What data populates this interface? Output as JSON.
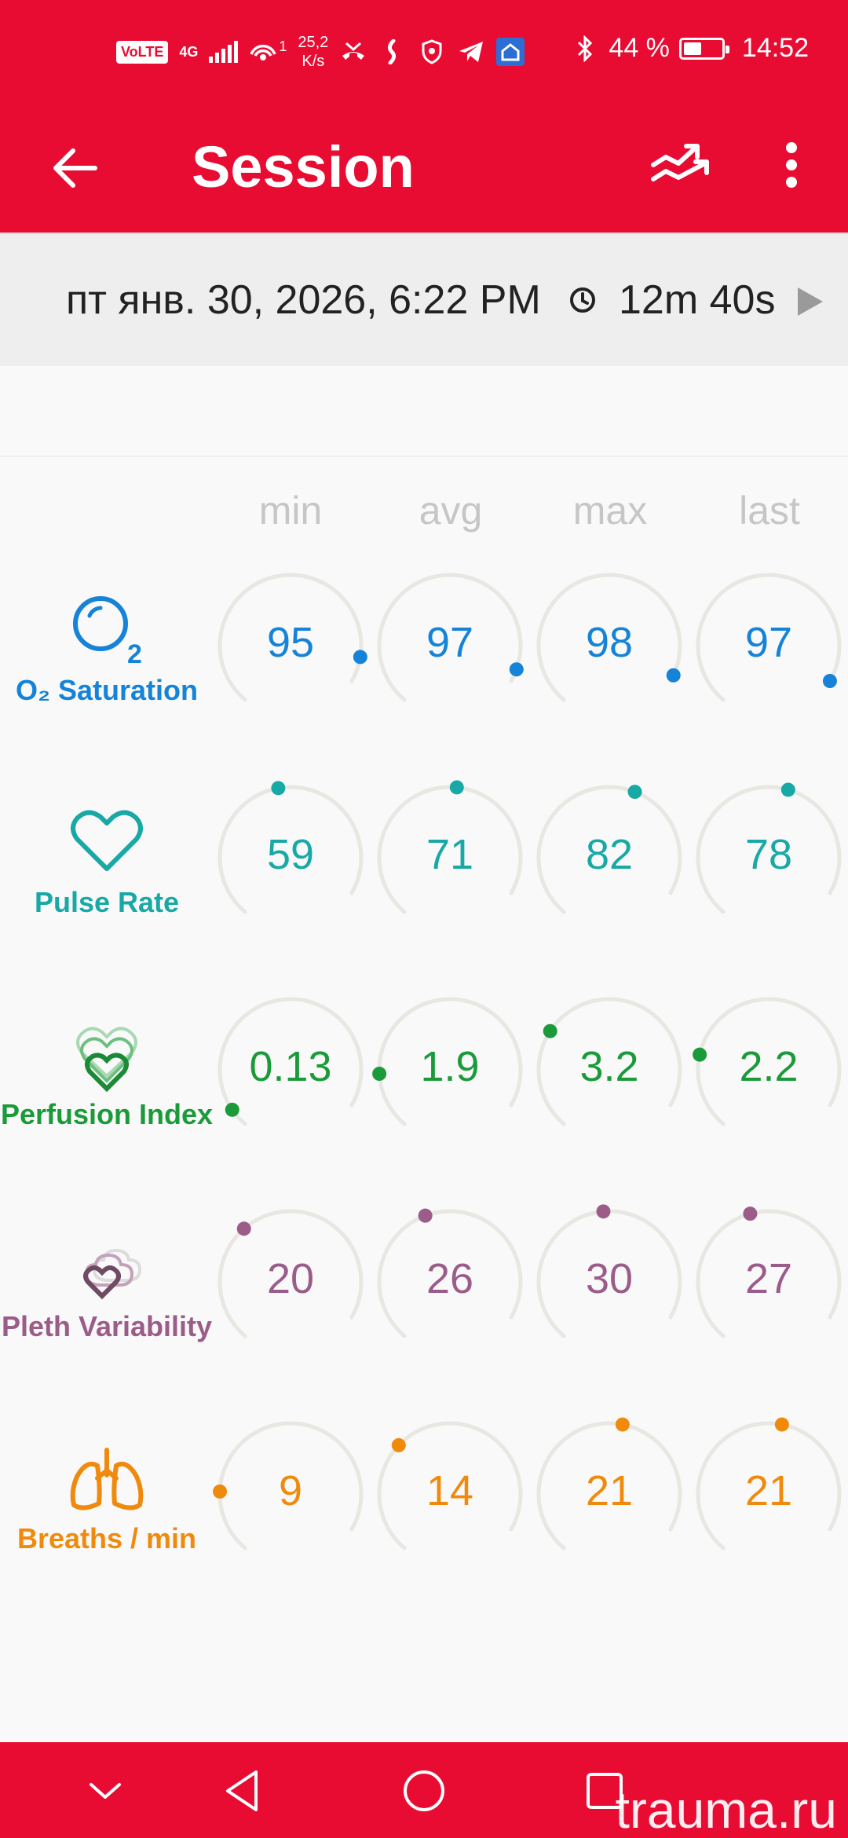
{
  "status_bar": {
    "volte": "VoLTE",
    "network": "4G",
    "wifi_count": "1",
    "speed_value": "25,2",
    "speed_unit": "K/s",
    "battery": "44 %",
    "time": "14:52"
  },
  "app_bar": {
    "title": "Session"
  },
  "session": {
    "date": "пт янв. 30, 2026, 6:22 PM",
    "duration": "12m 40s"
  },
  "columns": [
    "min",
    "avg",
    "max",
    "last"
  ],
  "metrics": [
    {
      "label": "O₂ Saturation",
      "icon": "o2-icon",
      "color": "#1583d7",
      "values": [
        "95",
        "97",
        "98",
        "97"
      ],
      "levels": [
        0.92,
        0.96,
        0.98,
        1.0
      ]
    },
    {
      "label": "Pulse Rate",
      "icon": "heart-icon",
      "color": "#18a9a6",
      "values": [
        "59",
        "71",
        "82",
        "78"
      ],
      "levels": [
        0.5,
        0.56,
        0.62,
        0.6
      ]
    },
    {
      "label": "Perfusion Index",
      "icon": "perfusion-icon",
      "color": "#1b9a3a",
      "values": [
        "0.13",
        "1.9",
        "3.2",
        "2.2"
      ],
      "levels": [
        0.06,
        0.18,
        0.32,
        0.24
      ]
    },
    {
      "label": "Pleth Variability",
      "icon": "pleth-icon",
      "color": "#9b5c8a",
      "values": [
        "20",
        "26",
        "30",
        "27"
      ],
      "levels": [
        0.38,
        0.46,
        0.52,
        0.48
      ]
    },
    {
      "label": "Breaths / min",
      "icon": "lungs-icon",
      "color": "#f08a0d",
      "values": [
        "9",
        "14",
        "21",
        "21"
      ],
      "levels": [
        0.2,
        0.36,
        0.58,
        0.58
      ]
    }
  ],
  "watermark": "trauma.ru"
}
